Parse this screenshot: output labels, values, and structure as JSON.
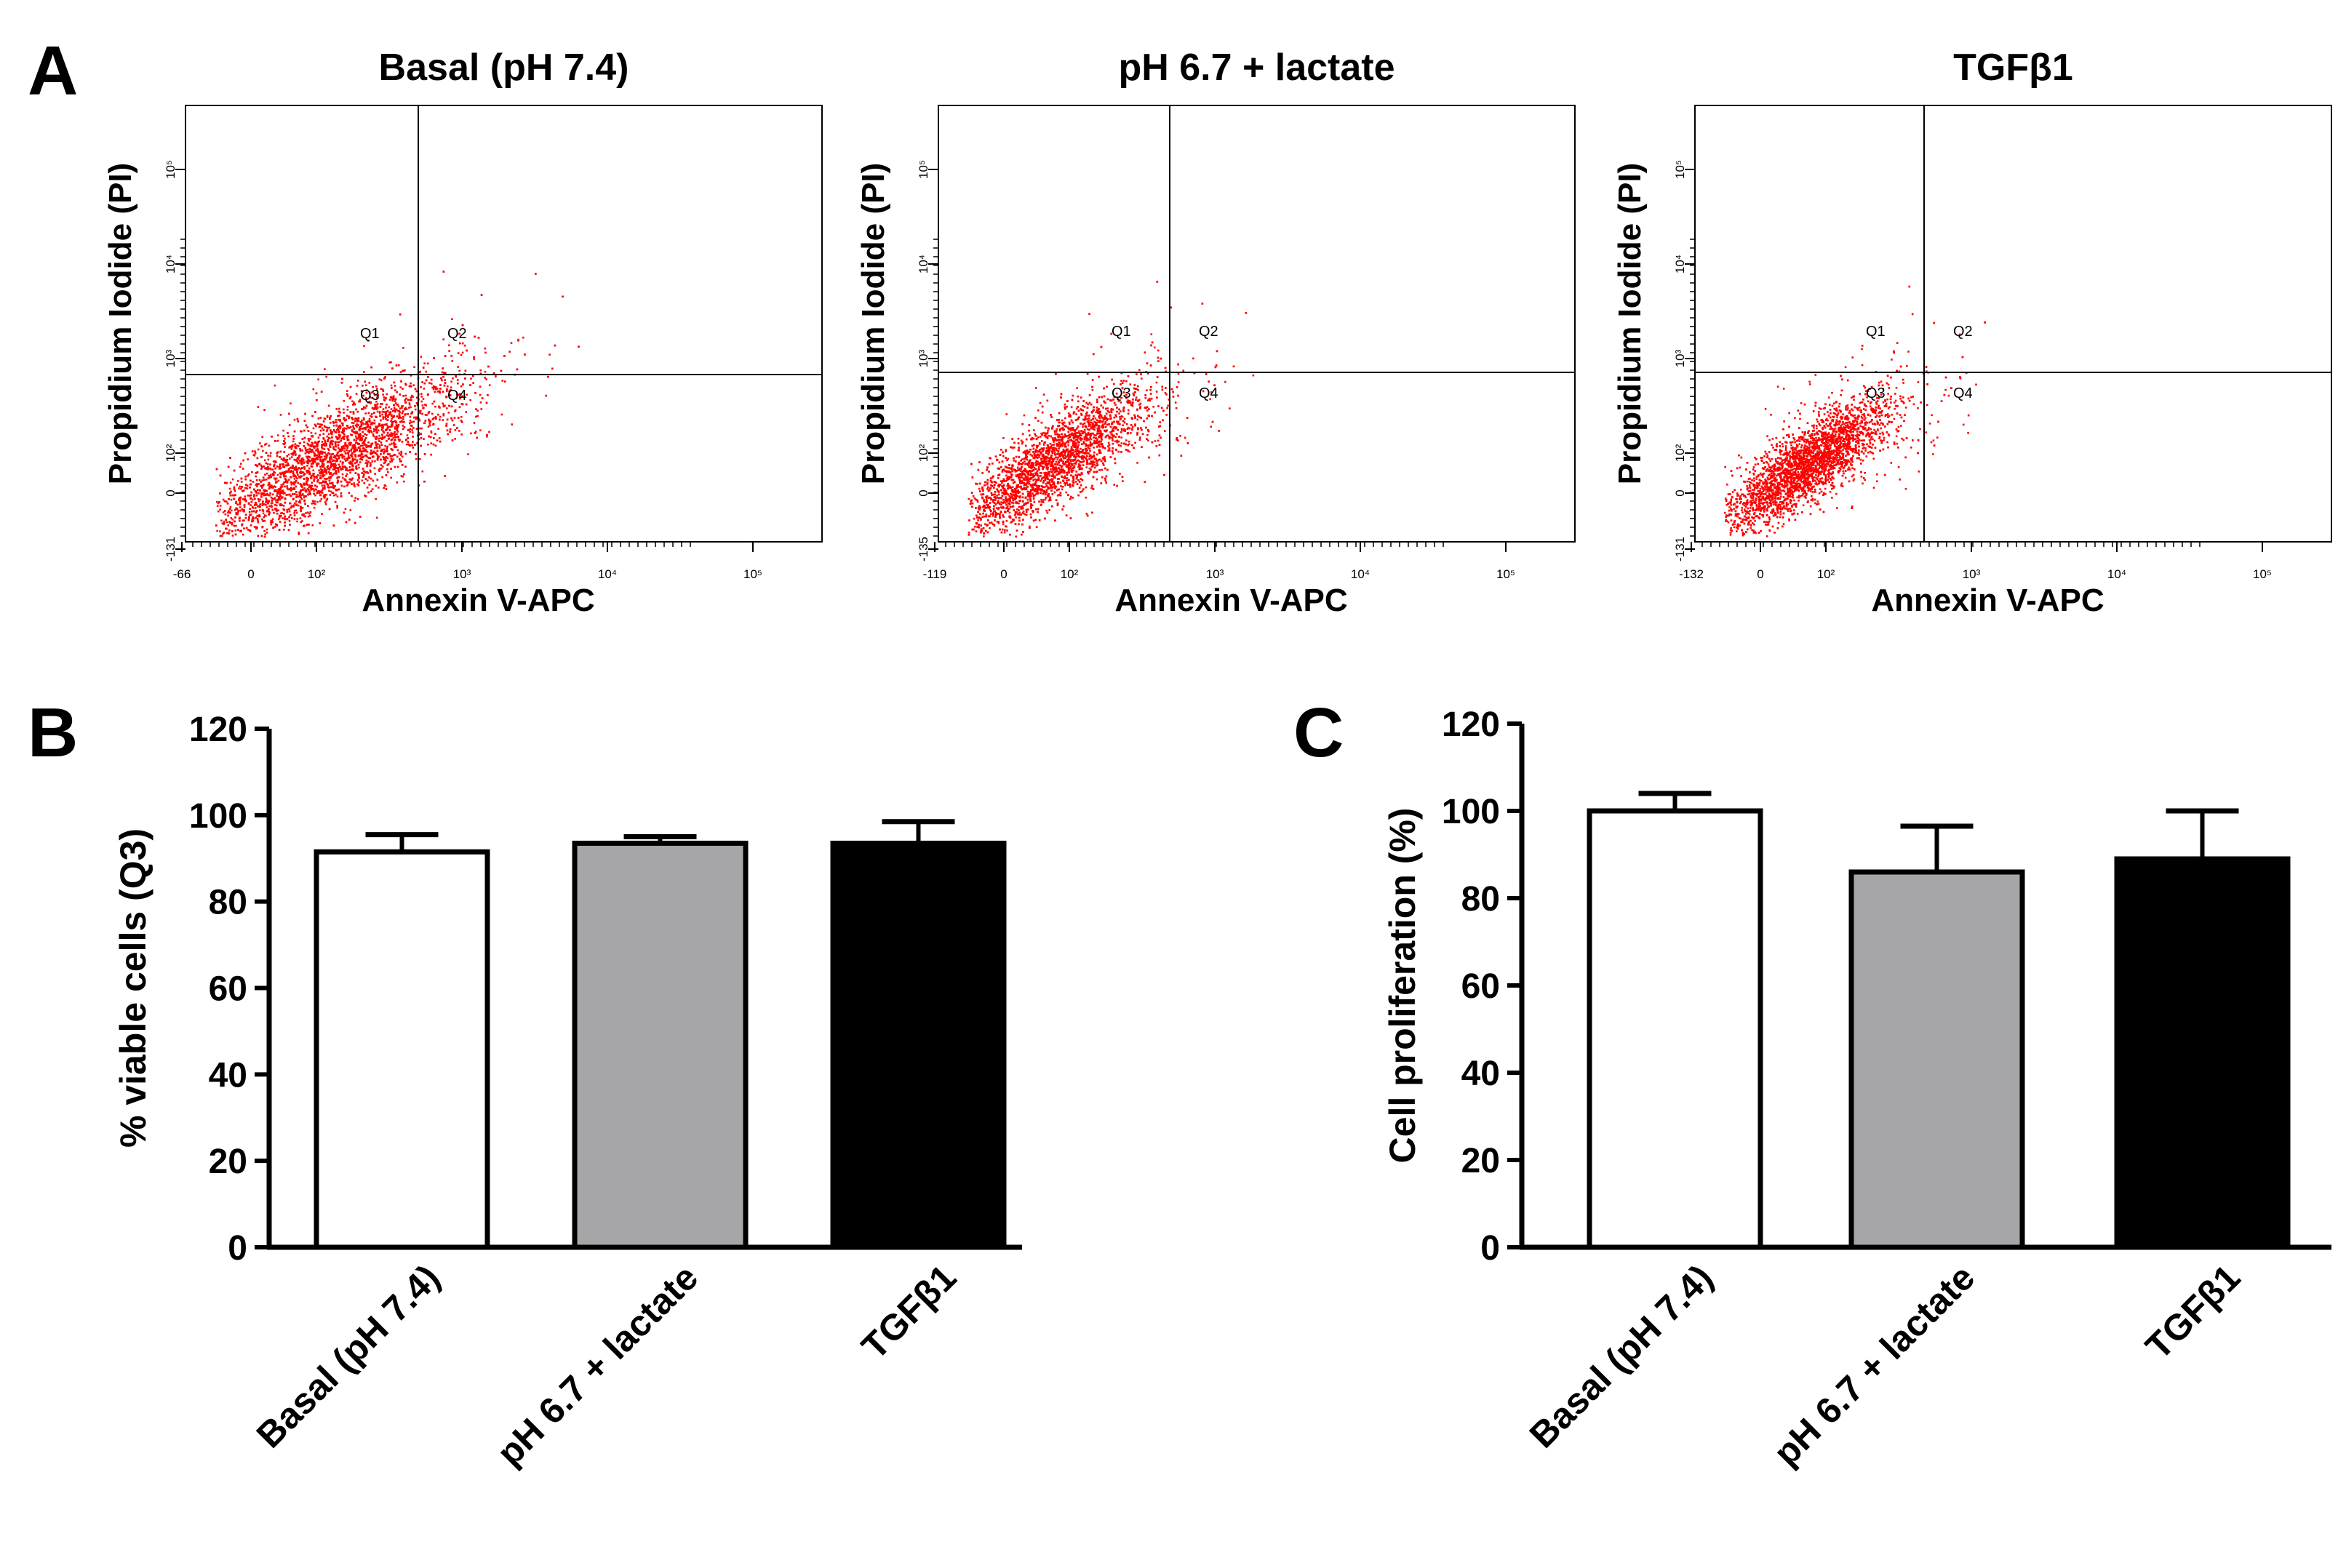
{
  "panel_labels": [
    "A",
    "B",
    "C"
  ],
  "chart_data": [
    {
      "type": "scatter",
      "panel": "A",
      "title": "Basal (pH 7.4)",
      "xlabel": "Annexin V-APC",
      "ylabel": "Propidium Iodide (PI)",
      "scale": "biexponential",
      "x_tick_labels": [
        "-66",
        "0",
        "10²",
        "10³",
        "10⁴",
        "10⁵"
      ],
      "y_tick_labels": [
        "-131",
        "0",
        "10²",
        "10³",
        "10⁴",
        "10⁵"
      ],
      "quadrant_labels": [
        "Q1",
        "Q2",
        "Q3",
        "Q4"
      ],
      "population_center": [
        60,
        45
      ],
      "spread": "broad",
      "color": "#ff0000"
    },
    {
      "type": "scatter",
      "panel": "A",
      "title": "pH 6.7 + lactate",
      "xlabel": "Annexin V-APC",
      "ylabel": "Propidium Iodide (PI)",
      "scale": "biexponential",
      "x_tick_labels": [
        "-119",
        "0",
        "10²",
        "10³",
        "10⁴",
        "10⁵"
      ],
      "y_tick_labels": [
        "-135",
        "0",
        "10²",
        "10³",
        "10⁴",
        "10⁵"
      ],
      "quadrant_labels": [
        "Q1",
        "Q2",
        "Q3",
        "Q4"
      ],
      "population_center": [
        30,
        40
      ],
      "spread": "medium",
      "color": "#ff0000"
    },
    {
      "type": "scatter",
      "panel": "A",
      "title": "TGFβ1",
      "xlabel": "Annexin V-APC",
      "ylabel": "Propidium Iodide (PI)",
      "scale": "biexponential",
      "x_tick_labels": [
        "-132",
        "0",
        "10²",
        "10³",
        "10⁴",
        "10⁵"
      ],
      "y_tick_labels": [
        "-131",
        "0",
        "10²",
        "10³",
        "10⁴",
        "10⁵"
      ],
      "quadrant_labels": [
        "Q1",
        "Q2",
        "Q3",
        "Q4"
      ],
      "population_center": [
        20,
        40
      ],
      "spread": "tight",
      "color": "#ff0000"
    },
    {
      "type": "bar",
      "panel": "B",
      "categories": [
        "Basal (pH 7.4)",
        "pH 6.7 + lactate",
        "TGFβ1"
      ],
      "values": [
        91.5,
        93.5,
        93.5
      ],
      "errors": [
        4,
        1.5,
        5
      ],
      "bar_colors": [
        "#ffffff",
        "#a6a6a8",
        "#000000"
      ],
      "ylabel": "% viable cells (Q3)",
      "ylim": [
        0,
        120
      ],
      "yticks": [
        "0",
        "20",
        "40",
        "60",
        "80",
        "100",
        "120"
      ]
    },
    {
      "type": "bar",
      "panel": "C",
      "categories": [
        "Basal (pH 7.4)",
        "pH 6.7 + lactate",
        "TGFβ1"
      ],
      "values": [
        100,
        86,
        89
      ],
      "errors": [
        4,
        10.5,
        11
      ],
      "bar_colors": [
        "#ffffff",
        "#a6a6a8",
        "#000000"
      ],
      "ylabel": "Cell proliferation (%)",
      "ylim": [
        0,
        120
      ],
      "yticks": [
        "0",
        "20",
        "40",
        "60",
        "80",
        "100",
        "120"
      ]
    }
  ]
}
